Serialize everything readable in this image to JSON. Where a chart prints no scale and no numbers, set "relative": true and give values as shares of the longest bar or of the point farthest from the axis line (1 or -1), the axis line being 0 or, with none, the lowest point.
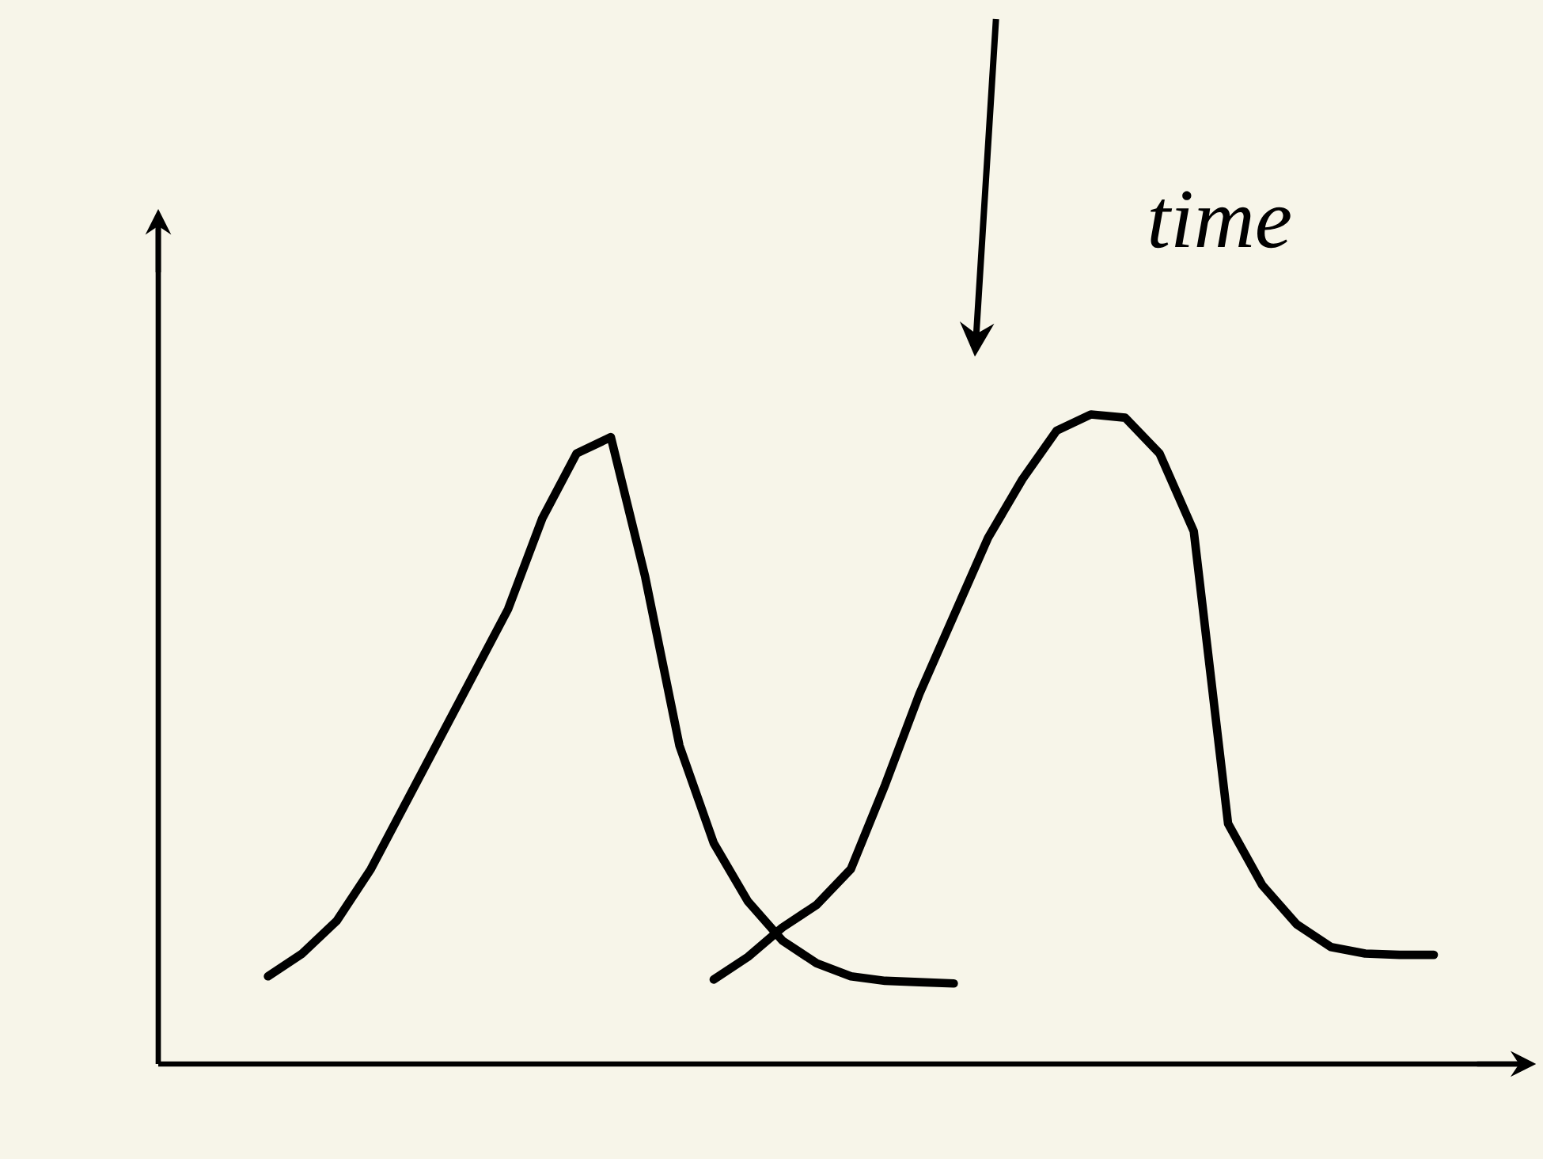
{
  "chart_data": {
    "type": "line",
    "relative": true,
    "annotations": [
      "time"
    ],
    "line_style": "solid",
    "marker": "none",
    "categories": [
      null,
      null,
      null,
      null,
      null,
      null,
      null,
      null,
      null,
      null,
      null,
      null,
      null,
      null,
      null,
      null,
      null,
      null,
      null,
      null,
      null,
      null,
      null,
      null,
      null,
      null,
      null,
      null,
      null,
      null,
      null,
      null,
      null,
      null,
      null
    ],
    "series": [
      {
        "color": "#000000",
        "values": [
          0.135,
          0.17,
          0.22,
          0.3,
          0.4,
          0.5,
          0.6,
          0.7,
          0.84,
          0.94,
          0.965,
          0.75,
          0.49,
          0.34,
          0.25,
          0.19,
          0.155,
          0.135,
          0.128,
          0.126,
          0.124,
          null,
          null,
          null,
          null,
          null,
          null,
          null,
          null,
          null,
          null,
          null,
          null,
          null,
          null
        ]
      },
      {
        "color": "#000000",
        "values": [
          null,
          null,
          null,
          null,
          null,
          null,
          null,
          null,
          null,
          null,
          null,
          null,
          null,
          0.13,
          0.165,
          0.21,
          0.245,
          0.3,
          0.43,
          0.57,
          0.69,
          0.81,
          0.9,
          0.975,
          1.0,
          0.995,
          0.94,
          0.82,
          0.37,
          0.275,
          0.215,
          0.18,
          0.17,
          0.168,
          0.168
        ]
      }
    ]
  }
}
